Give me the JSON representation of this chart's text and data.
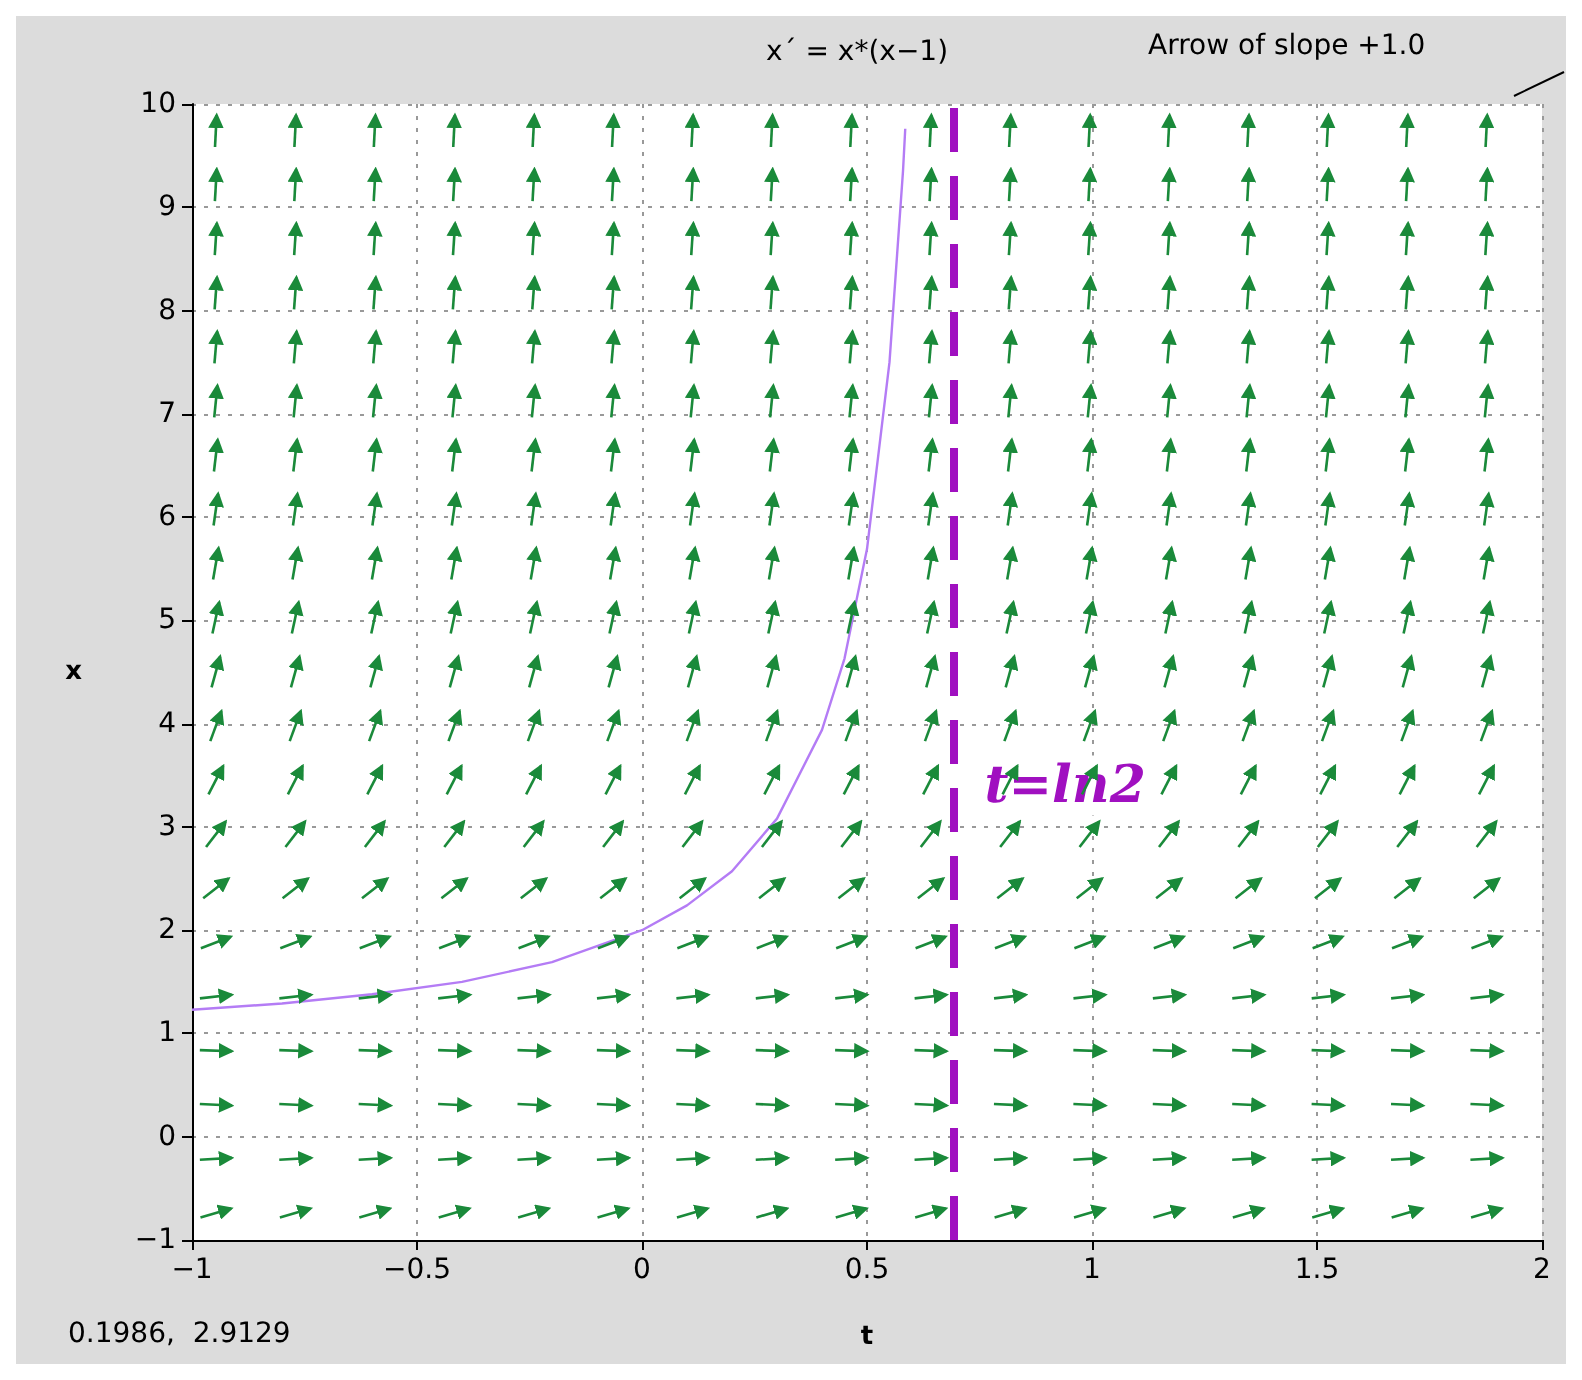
{
  "chart_data": {
    "type": "line",
    "title": "x´ = x*(x−1)",
    "xlabel": "t",
    "ylabel": "x",
    "x": [
      -1,
      -0.8,
      -0.6,
      -0.4,
      -0.2,
      0,
      0.1,
      0.2,
      0.3,
      0.4,
      0.45,
      0.5,
      0.55,
      0.58,
      0.585
    ],
    "series": [
      {
        "color": "#b47cf5",
        "values": [
          1.23,
          1.29,
          1.38,
          1.5,
          1.69,
          2,
          2.24,
          2.57,
          3.08,
          3.94,
          4.63,
          5.69,
          7.5,
          9.35,
          9.76
        ]
      }
    ],
    "xlim": [
      -1,
      2
    ],
    "ylim": [
      -1,
      10
    ],
    "xticks": [
      {
        "value": -1,
        "label": "−1"
      },
      {
        "value": -0.5,
        "label": "−0.5"
      },
      0,
      0.5,
      1,
      1.5,
      2
    ],
    "yticks": [
      {
        "value": -1,
        "label": "−1"
      },
      0,
      1,
      2,
      3,
      4,
      5,
      6,
      7,
      8,
      9,
      10
    ],
    "grid": true,
    "marker": "none",
    "line_style": "solid",
    "ref_lines": [
      {
        "axis": "x",
        "value": 0.69,
        "label": "t=ln2",
        "color": "#a010c0",
        "line_style": "dashed"
      }
    ],
    "annotations": [
      "Arrow of slope +1.0",
      "0.1986,  2.9129"
    ]
  }
}
